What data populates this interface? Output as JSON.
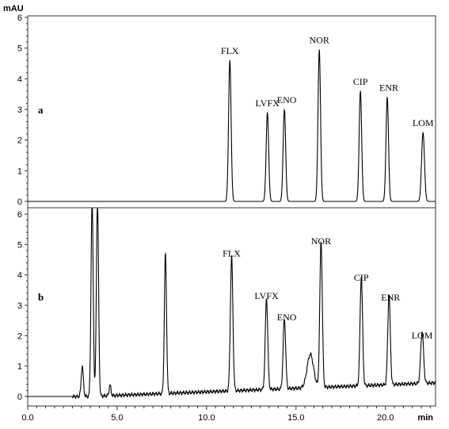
{
  "chart_data": [
    {
      "type": "line",
      "panel_label": "a",
      "y_unit": "mAU",
      "x_unit": "min",
      "xlim": [
        0,
        22.8
      ],
      "ylim": [
        -0.3,
        6.1
      ],
      "y_ticks": [
        "0",
        "1",
        "2",
        "3",
        "4",
        "5",
        "6"
      ],
      "x_ticks": [],
      "baseline": 0.0,
      "peaks": [
        {
          "label": "FLX",
          "x": 11.3,
          "y": 4.6,
          "w": 0.07
        },
        {
          "label": "LVFX",
          "x": 13.4,
          "y": 2.9,
          "w": 0.07
        },
        {
          "label": "ENO",
          "x": 14.35,
          "y": 3.0,
          "w": 0.07
        },
        {
          "label": "NOR",
          "x": 16.3,
          "y": 4.95,
          "w": 0.07
        },
        {
          "label": "CIP",
          "x": 18.6,
          "y": 3.6,
          "w": 0.07
        },
        {
          "label": "ENR",
          "x": 20.1,
          "y": 3.4,
          "w": 0.07
        },
        {
          "label": "LOM",
          "x": 22.1,
          "y": 2.25,
          "w": 0.08
        }
      ]
    },
    {
      "type": "line",
      "panel_label": "b",
      "y_unit": "",
      "x_unit": "min",
      "xlim": [
        0,
        22.8
      ],
      "ylim": [
        -0.3,
        6.1
      ],
      "y_ticks": [
        "0",
        "1",
        "2",
        "3",
        "4",
        "5",
        "6"
      ],
      "x_ticks": [
        "0.0",
        "5.0",
        "10.0",
        "15.0",
        "20.0"
      ],
      "baseline_start": 0.0,
      "baseline_end": 0.45,
      "peaks": [
        {
          "label": "",
          "x": 3.05,
          "y": 1.0,
          "w": 0.06
        },
        {
          "label": "",
          "x": 3.6,
          "y": 6.5,
          "w": 0.06
        },
        {
          "label": "",
          "x": 3.9,
          "y": 6.5,
          "w": 0.06
        },
        {
          "label": "",
          "x": 4.6,
          "y": 0.35,
          "w": 0.05
        },
        {
          "label": "",
          "x": 7.7,
          "y": 4.6,
          "w": 0.06
        },
        {
          "label": "FLX",
          "x": 11.4,
          "y": 4.4,
          "w": 0.07
        },
        {
          "label": "LVFX",
          "x": 13.35,
          "y": 3.0,
          "w": 0.07
        },
        {
          "label": "ENO",
          "x": 14.35,
          "y": 2.3,
          "w": 0.07
        },
        {
          "label": "",
          "x": 15.8,
          "y": 1.1,
          "w": 0.18
        },
        {
          "label": "NOR",
          "x": 16.4,
          "y": 4.8,
          "w": 0.07
        },
        {
          "label": "CIP",
          "x": 18.65,
          "y": 3.6,
          "w": 0.07
        },
        {
          "label": "ENR",
          "x": 20.2,
          "y": 2.95,
          "w": 0.07
        },
        {
          "label": "LOM",
          "x": 22.05,
          "y": 1.7,
          "w": 0.08
        }
      ]
    }
  ]
}
